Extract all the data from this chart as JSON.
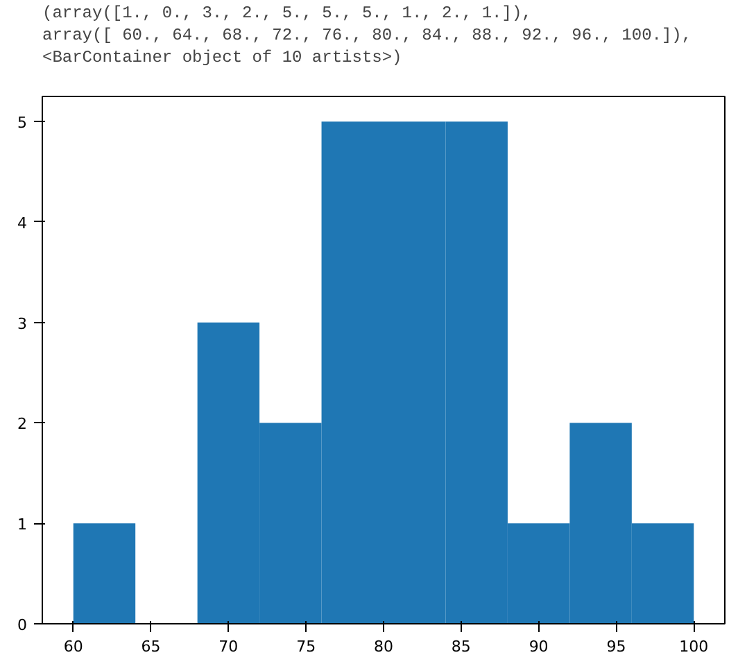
{
  "chart_data": {
    "type": "histogram",
    "annotations": [
      "(array([1., 0., 3., 2., 5., 5., 5., 1., 2., 1.]),",
      "array([ 60.,  64.,  68.,  72.,  76.,  80.,  84.,  88.,  92.,  96., 100.]),",
      "<BarContainer object of 10 artists>)"
    ],
    "bins": [
      60,
      64,
      68,
      72,
      76,
      80,
      84,
      88,
      92,
      96,
      100
    ],
    "values": [
      1,
      0,
      3,
      2,
      5,
      5,
      5,
      1,
      2,
      1
    ],
    "color": "#1f77b4",
    "xlim": [
      58,
      102
    ],
    "ylim": [
      0,
      5.25
    ],
    "xticks": [
      60,
      65,
      70,
      75,
      80,
      85,
      90,
      95,
      100
    ],
    "yticks": [
      0,
      1,
      2,
      3,
      4,
      5
    ],
    "grid": false
  }
}
